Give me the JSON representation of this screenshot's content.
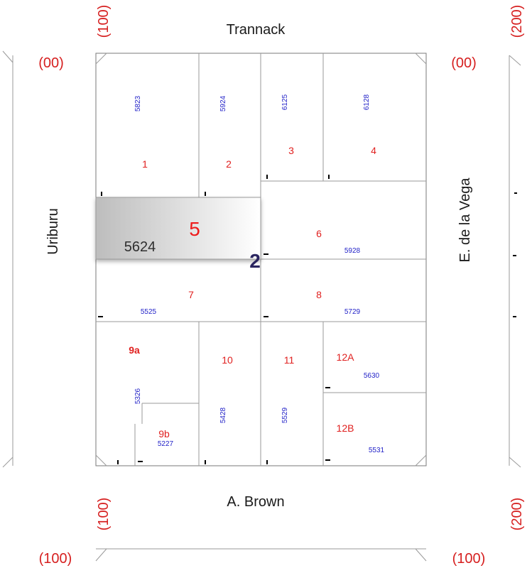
{
  "streets": {
    "north": "Trannack",
    "south": "A. Brown",
    "west": "Uriburu",
    "east": "E. de la Vega"
  },
  "codes": {
    "top_left_vertical": "(100)",
    "top_right_vertical": "(200)",
    "left_even": "(00)",
    "right_even": "(00)",
    "bottom_left_vertical": "(100)",
    "bottom_right_vertical": "(200)",
    "bottom_left": "(100)",
    "bottom_right": "(100)"
  },
  "block": {
    "number": "2",
    "highlight_lot": "5",
    "highlight_cadastral": "5624"
  },
  "lots": [
    {
      "number": "1",
      "cadastral": "5823"
    },
    {
      "number": "2",
      "cadastral": "5924"
    },
    {
      "number": "3",
      "cadastral": "6125"
    },
    {
      "number": "4",
      "cadastral": "6128"
    },
    {
      "number": "6",
      "cadastral": "5928"
    },
    {
      "number": "7",
      "cadastral": "5525"
    },
    {
      "number": "8",
      "cadastral": "5729"
    },
    {
      "number": "9a",
      "cadastral": "5326"
    },
    {
      "number": "9b",
      "cadastral": "5227"
    },
    {
      "number": "10",
      "cadastral": "5428"
    },
    {
      "number": "11",
      "cadastral": "5529"
    },
    {
      "number": "12A",
      "cadastral": "5630"
    },
    {
      "number": "12B",
      "cadastral": "5531"
    }
  ],
  "colors": {
    "lot_number": "#e0201f",
    "cadastral": "#2323c8",
    "code": "#d61f1f",
    "block_number": "#2b2560"
  }
}
